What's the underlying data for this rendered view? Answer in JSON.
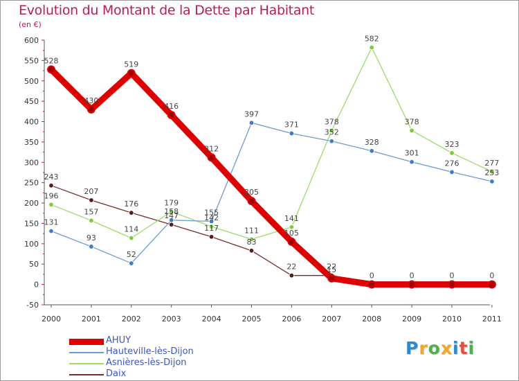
{
  "chart_data": {
    "type": "line",
    "title": "Evolution du Montant de la Dette par Habitant",
    "subtitle": "(en €)",
    "x": [
      "2000",
      "2001",
      "2002",
      "2003",
      "2004",
      "2005",
      "2006",
      "2007",
      "2008",
      "2009",
      "2010",
      "2011"
    ],
    "yticks": [
      "-50",
      "0",
      "50",
      "100",
      "150",
      "200",
      "250",
      "300",
      "350",
      "400",
      "450",
      "500",
      "550",
      "600"
    ],
    "ylim": [
      -50,
      600
    ],
    "grid": false,
    "legend_position": "bottom-left",
    "series": [
      {
        "name": "AHUY",
        "color": "#e00000",
        "values": [
          528,
          430,
          519,
          416,
          312,
          205,
          105,
          15,
          0,
          0,
          0,
          0
        ]
      },
      {
        "name": "Hauteville-lès-Dijon",
        "color": "#6b9bd1",
        "marker": "#3a7ccc",
        "values": [
          131,
          93,
          52,
          158,
          155,
          397,
          371,
          352,
          328,
          301,
          276,
          253
        ]
      },
      {
        "name": "Asnières-lès-Dijon",
        "color": "#99dd66",
        "marker": "#7ccc3a",
        "values": [
          196,
          157,
          114,
          179,
          142,
          111,
          141,
          378,
          582,
          378,
          323,
          277
        ]
      },
      {
        "name": "Daix",
        "color": "#7a2a2a",
        "marker": "#5a1a1a",
        "values": [
          243,
          207,
          176,
          147,
          117,
          83,
          22,
          22,
          0,
          0,
          0,
          0
        ]
      }
    ],
    "point_labels": [
      [
        "528",
        "430",
        "519",
        "416",
        "312",
        "205",
        "105",
        "15",
        "0",
        "0",
        "0",
        "0"
      ],
      [
        "131",
        "93",
        "52",
        "158",
        "155",
        "397",
        "371",
        "352",
        "328",
        "301",
        "276",
        "253"
      ],
      [
        "196",
        "157",
        "114",
        "179",
        "142",
        "111",
        "141",
        "378",
        "582",
        "378",
        "323",
        "277"
      ],
      [
        "243",
        "207",
        "176",
        "147",
        "117",
        "83",
        "22",
        "22",
        "",
        "",
        "",
        ""
      ]
    ]
  },
  "logo": {
    "letters": [
      "P",
      "r",
      "o",
      "x",
      "i",
      "t",
      "i"
    ],
    "colors": [
      "#2a8ad8",
      "#f5a623",
      "#4caf50",
      "#f5a623",
      "#2a8ad8",
      "#e84c3d",
      "#4caf50"
    ]
  }
}
